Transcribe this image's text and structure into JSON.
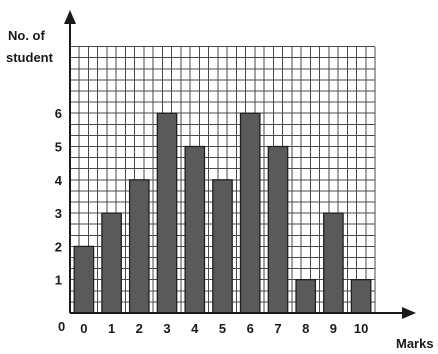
{
  "chart_data": {
    "type": "bar",
    "title": "",
    "categories": [
      "0",
      "1",
      "2",
      "3",
      "4",
      "5",
      "6",
      "7",
      "8",
      "9",
      "10"
    ],
    "values": [
      2,
      3,
      4,
      6,
      5,
      4,
      6,
      5,
      1,
      3,
      1
    ],
    "xlabel": "Marks",
    "ylabel": [
      "No. of",
      "student"
    ],
    "y_ticks": [
      "1",
      "2",
      "3",
      "4",
      "5",
      "6"
    ],
    "origin_label": "0",
    "ylim": [
      0,
      8.5
    ],
    "grid": true,
    "grid_minor_divisions": 3,
    "bar_color": "#5a5a5a",
    "grid_color": "#4a4a4a"
  }
}
